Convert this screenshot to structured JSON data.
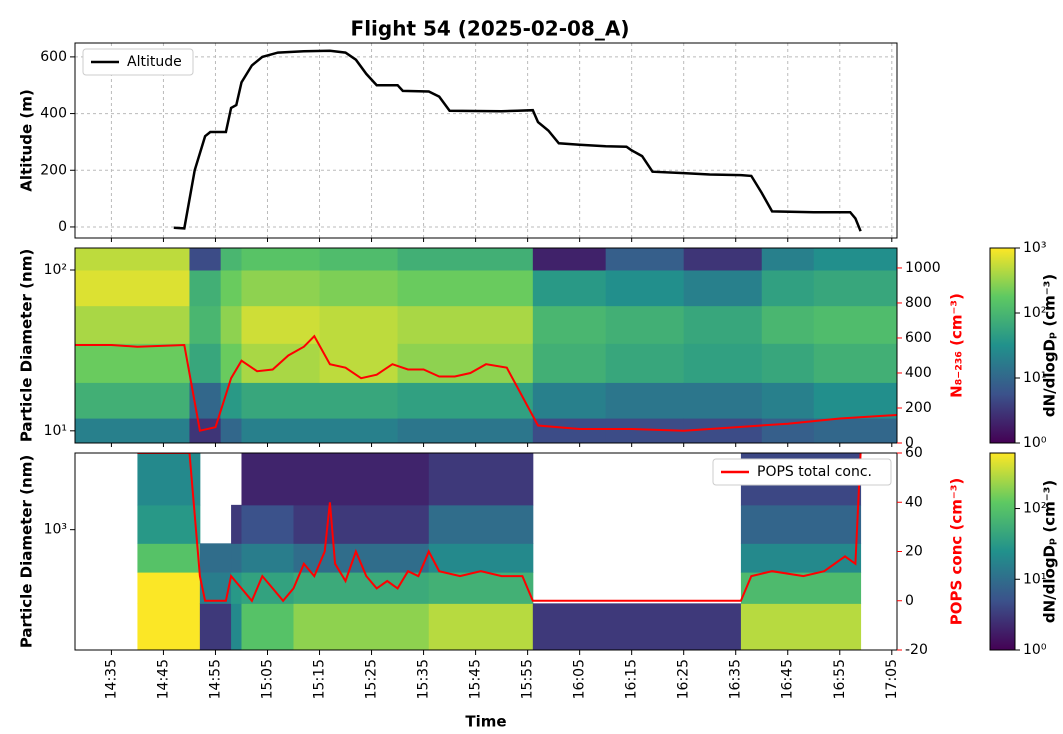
{
  "chart_data": [
    {
      "type": "line",
      "title": "Flight 54 (2025-02-08_A)",
      "ylabel": "Altitude (m)",
      "xlim": [
        "14:28",
        "17:06"
      ],
      "ylim": [
        -39,
        649
      ],
      "yticks": [
        0,
        200,
        400,
        600
      ],
      "grid": true,
      "legend": "upper left",
      "series": [
        {
          "name": "Altitude",
          "color": "#000000",
          "x": [
            "14:47",
            "14:49",
            "14:51",
            "14:53",
            "14:54",
            "14:57",
            "14:58",
            "14:59",
            "15:00",
            "15:02",
            "15:04",
            "15:07",
            "15:12",
            "15:17",
            "15:20",
            "15:22",
            "15:24",
            "15:26",
            "15:30",
            "15:31",
            "15:36",
            "15:38",
            "15:40",
            "15:50",
            "15:53",
            "15:56",
            "15:57",
            "15:59",
            "16:01",
            "16:05",
            "16:10",
            "16:14",
            "16:15",
            "16:17",
            "16:19",
            "16:25",
            "16:30",
            "16:36",
            "16:38",
            "16:40",
            "16:42",
            "16:50",
            "16:57",
            "16:58",
            "16:59"
          ],
          "values": [
            -3,
            -5,
            200,
            320,
            335,
            335,
            420,
            430,
            510,
            570,
            600,
            615,
            620,
            622,
            615,
            590,
            540,
            500,
            500,
            480,
            478,
            460,
            410,
            408,
            410,
            412,
            370,
            340,
            295,
            290,
            285,
            283,
            270,
            250,
            195,
            190,
            185,
            183,
            180,
            120,
            55,
            52,
            52,
            30,
            -15
          ]
        }
      ]
    },
    {
      "type": "heatmap",
      "ylabel": "Particle Diameter (nm)",
      "ylog": true,
      "xlim": [
        "14:28",
        "17:06"
      ],
      "ylim": [
        8.4,
        137
      ],
      "yticks": [
        {
          "value": 10,
          "label": "10¹"
        },
        {
          "value": 100,
          "label": "10²"
        }
      ],
      "x_edges": [
        "14:28",
        "14:50",
        "14:56",
        "15:00",
        "15:15",
        "15:30",
        "15:56",
        "16:10",
        "16:25",
        "16:40",
        "16:50",
        "17:06"
      ],
      "y_edges": [
        8.4,
        12,
        20,
        35,
        60,
        100,
        137
      ],
      "z": [
        [
          20,
          80,
          200,
          400,
          700,
          500
        ],
        [
          3,
          10,
          60,
          100,
          80,
          5
        ],
        [
          10,
          40,
          200,
          300,
          200,
          100
        ],
        [
          20,
          60,
          400,
          600,
          300,
          150
        ],
        [
          20,
          60,
          500,
          500,
          250,
          120
        ],
        [
          15,
          50,
          300,
          400,
          200,
          80
        ],
        [
          5,
          20,
          80,
          100,
          40,
          2
        ],
        [
          5,
          15,
          60,
          80,
          30,
          8
        ],
        [
          5,
          15,
          50,
          60,
          20,
          3
        ],
        [
          8,
          20,
          60,
          100,
          50,
          20
        ],
        [
          10,
          30,
          80,
          120,
          60,
          30
        ]
      ],
      "clim": [
        1,
        1000
      ],
      "cticks": [
        {
          "value": 1,
          "label": "10⁰"
        },
        {
          "value": 10,
          "label": "10¹"
        },
        {
          "value": 100,
          "label": "10²"
        },
        {
          "value": 1000,
          "label": "10³"
        }
      ],
      "clabel": "dN/dlogDₚ (cm⁻³)",
      "cmap": [
        "#440154",
        "#3b528b",
        "#21918c",
        "#5ec962",
        "#fde725"
      ],
      "y2label": "N₈₋₂₃₆ (cm⁻³)",
      "y2lim": [
        0,
        1114
      ],
      "y2ticks": [
        0,
        200,
        400,
        600,
        800,
        1000
      ],
      "y2color": "#ff0000",
      "series": [
        {
          "color": "#ff0000",
          "axis": "y2",
          "x": [
            "14:28",
            "14:35",
            "14:40",
            "14:49",
            "14:52",
            "14:55",
            "14:58",
            "15:00",
            "15:03",
            "15:06",
            "15:09",
            "15:12",
            "15:14",
            "15:17",
            "15:20",
            "15:23",
            "15:26",
            "15:29",
            "15:32",
            "15:35",
            "15:38",
            "15:41",
            "15:44",
            "15:47",
            "15:51",
            "15:57",
            "16:05",
            "16:15",
            "16:25",
            "16:35",
            "16:45",
            "16:55",
            "17:06"
          ],
          "values": [
            560,
            560,
            550,
            560,
            70,
            90,
            370,
            470,
            410,
            420,
            500,
            550,
            610,
            450,
            430,
            370,
            390,
            450,
            420,
            420,
            380,
            380,
            400,
            450,
            430,
            100,
            80,
            80,
            70,
            90,
            110,
            140,
            160
          ]
        }
      ]
    },
    {
      "type": "heatmap",
      "ylabel": "Particle Diameter (nm)",
      "ylog": true,
      "xlim": [
        "14:28",
        "17:06"
      ],
      "ylim": [
        140,
        3500
      ],
      "yticks": [
        {
          "value": 1000,
          "label": "10³"
        }
      ],
      "x_edges": [
        "14:40",
        "14:52",
        "14:58",
        "15:00",
        "15:10",
        "15:36",
        "15:56",
        "16:36",
        "16:59"
      ],
      "y_edges": [
        140,
        300,
        500,
        800,
        1500,
        3500
      ],
      "z": [
        [
          600,
          600,
          100,
          30,
          20
        ],
        [
          3,
          15,
          10,
          null,
          null
        ],
        [
          20,
          30,
          10,
          3,
          null
        ],
        [
          100,
          40,
          15,
          5,
          2
        ],
        [
          200,
          50,
          10,
          3,
          2
        ],
        [
          300,
          60,
          20,
          10,
          3
        ],
        [
          3,
          null,
          null,
          null,
          null
        ],
        [
          300,
          80,
          20,
          8,
          4
        ]
      ],
      "clim": [
        1,
        610
      ],
      "cticks": [
        {
          "value": 1,
          "label": "10⁰"
        },
        {
          "value": 10,
          "label": "10¹"
        },
        {
          "value": 100,
          "label": "10²"
        }
      ],
      "clabel": "dN/dlogDₚ (cm⁻³)",
      "cmap": [
        "#440154",
        "#3b528b",
        "#21918c",
        "#5ec962",
        "#fde725"
      ],
      "y2label": "POPS conc (cm⁻³)",
      "y2lim": [
        -20,
        60
      ],
      "y2ticks": [
        -20,
        0,
        20,
        40,
        60
      ],
      "y2color": "#ff0000",
      "legend": "upper right",
      "xlabel": "Time",
      "xticks": [
        "14:35",
        "14:45",
        "14:55",
        "15:05",
        "15:15",
        "15:25",
        "15:35",
        "15:45",
        "15:55",
        "16:05",
        "16:15",
        "16:25",
        "16:35",
        "16:45",
        "16:55",
        "17:05"
      ],
      "series": [
        {
          "name": "POPS total conc.",
          "color": "#ff0000",
          "axis": "y2",
          "x": [
            "14:40",
            "14:50",
            "14:52",
            "14:53",
            "14:57",
            "14:58",
            "15:00",
            "15:02",
            "15:04",
            "15:06",
            "15:08",
            "15:10",
            "15:12",
            "15:14",
            "15:16",
            "15:17",
            "15:18",
            "15:20",
            "15:22",
            "15:24",
            "15:26",
            "15:28",
            "15:30",
            "15:32",
            "15:34",
            "15:36",
            "15:38",
            "15:42",
            "15:46",
            "15:50",
            "15:54",
            "15:56",
            "16:36",
            "16:38",
            "16:42",
            "16:48",
            "16:52",
            "16:56",
            "16:58",
            "16:59"
          ],
          "values": [
            60,
            60,
            10,
            0,
            0,
            10,
            5,
            0,
            10,
            5,
            0,
            5,
            15,
            10,
            20,
            40,
            15,
            8,
            20,
            10,
            5,
            8,
            5,
            12,
            10,
            20,
            12,
            10,
            12,
            10,
            10,
            0,
            0,
            10,
            12,
            10,
            12,
            18,
            15,
            60
          ]
        }
      ]
    }
  ]
}
